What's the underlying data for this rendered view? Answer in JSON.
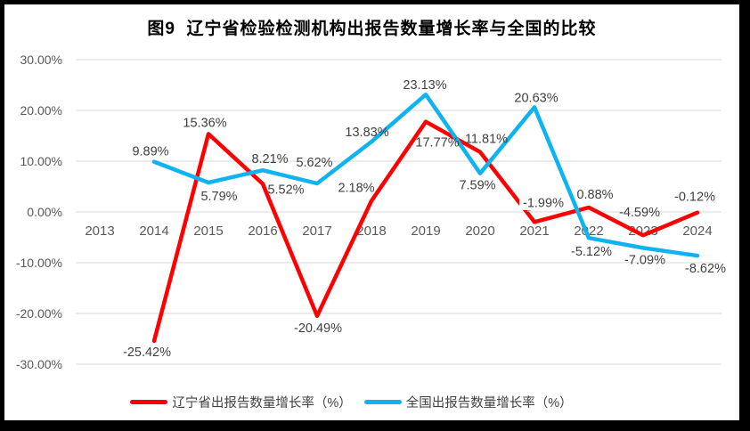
{
  "frame": {
    "border_color": "#000000",
    "background": "#ffffff"
  },
  "chart_data": {
    "type": "line",
    "title": "图9  辽宁省检验检测机构出报告数量增长率与全国的比较",
    "categories": [
      "2013",
      "2014",
      "2015",
      "2016",
      "2017",
      "2018",
      "2019",
      "2020",
      "2021",
      "2022",
      "2023",
      "2024"
    ],
    "series": [
      {
        "name": "辽宁省出报告数量增长率（%）",
        "color": "#FE0000",
        "values": [
          null,
          -25.42,
          15.36,
          5.52,
          -20.49,
          2.18,
          17.77,
          11.81,
          -1.99,
          0.88,
          -4.59,
          -0.12
        ],
        "label_texts": [
          "",
          "-25.42%",
          "15.36%",
          "5.52%",
          "-20.49%",
          "2.18%",
          "17.77%",
          "11.81%",
          "-1.99%",
          "0.88%",
          "-4.59%",
          "-0.12%"
        ],
        "label_offsets": [
          [
            0,
            0
          ],
          [
            -8,
            12
          ],
          [
            -4,
            -13
          ],
          [
            26,
            6
          ],
          [
            1,
            13
          ],
          [
            -17,
            -15
          ],
          [
            13,
            23
          ],
          [
            7,
            -15
          ],
          [
            10,
            -22,
            1
          ],
          [
            7,
            -15
          ],
          [
            -4,
            -26
          ],
          [
            -3,
            -18
          ]
        ]
      },
      {
        "name": "全国出报告数量增长率（%）",
        "color": "#0FB3EF",
        "values": [
          null,
          9.89,
          5.79,
          8.21,
          5.62,
          13.83,
          23.13,
          7.59,
          20.63,
          -5.12,
          -7.09,
          -8.62
        ],
        "label_texts": [
          "",
          "9.89%",
          "5.79%",
          "8.21%",
          "5.62%",
          "13.83%",
          "23.13%",
          "7.59%",
          "20.63%",
          "-5.12%",
          "-7.09%",
          "-8.62%"
        ],
        "label_offsets": [
          [
            0,
            0
          ],
          [
            -4,
            -12
          ],
          [
            12,
            15
          ],
          [
            8,
            -13
          ],
          [
            -3,
            -24
          ],
          [
            -5,
            -11
          ],
          [
            -1,
            -11
          ],
          [
            -3,
            13
          ],
          [
            2,
            -11
          ],
          [
            3,
            15
          ],
          [
            2,
            13
          ],
          [
            9,
            14
          ]
        ]
      }
    ],
    "ylim": [
      -30,
      30
    ],
    "ytick_labels": [
      "30.00%",
      "20.00%",
      "10.00%",
      "0.00%",
      "-10.00%",
      "-20.00%",
      "-30.00%"
    ],
    "xlabel": "",
    "ylabel": "",
    "grid": true,
    "gridline_color": "#D9D9D9",
    "axis_text_color": "#595959",
    "data_label_color": "#404040",
    "legend_position": "bottom"
  }
}
